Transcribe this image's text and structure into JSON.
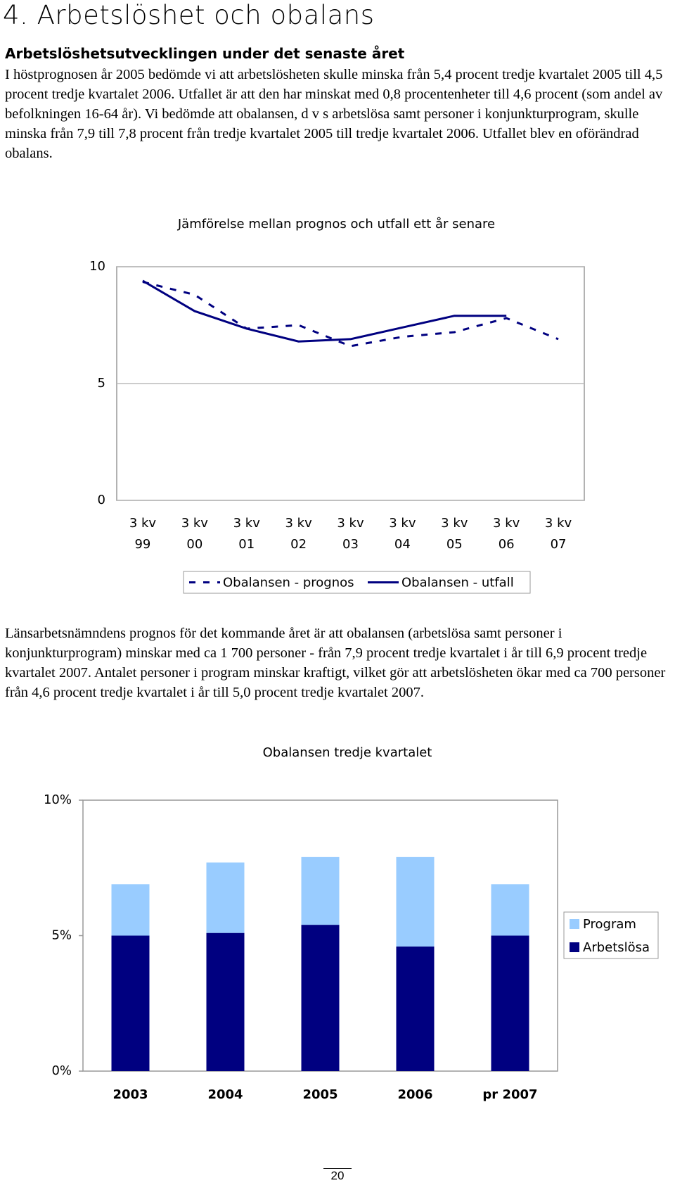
{
  "header": {
    "title": "4. Arbetslöshet och obalans"
  },
  "heading": "Arbetslöshetsutvecklingen under det senaste året",
  "paragraphs": [
    "I höstprognosen år 2005 bedömde vi att arbetslösheten skulle minska från 5,4 procent tredje kvartalet 2005 till 4,5 procent tredje kvartalet 2006. Utfallet är att den har minskat med 0,8 procentenheter till 4,6 procent (som andel av befolkningen 16-64 år). Vi bedömde att obalansen, d v s arbetslösa samt personer i konjunkturprogram, skulle minska från 7,9 till 7,8 procent från tredje kvartalet 2005 till tredje kvartalet 2006. Utfallet blev en oförändrad obalans.",
    "Länsarbetsnämndens prognos för det kommande året är att obalansen (arbetslösa samt personer i konjunkturprogram) minskar med ca 1 700 personer - från 7,9 procent tredje kvartalet i år till 6,9 procent tredje kvartalet 2007. Antalet personer i program minskar kraftigt, vilket gör att arbetslösheten ökar med ca 700 personer från 4,6 procent tredje kvartalet i år till 5,0 procent tredje kvartalet 2007."
  ],
  "chart_data": [
    {
      "type": "line",
      "title": "Jämförelse mellan prognos och utfall ett år senare",
      "categories": [
        "3 kv 99",
        "3 kv 00",
        "3 kv 01",
        "3 kv 02",
        "3 kv 03",
        "3 kv 04",
        "3 kv 05",
        "3 kv 06",
        "3 kv 07"
      ],
      "series": [
        {
          "name": "Obalansen - prognos",
          "color": "#000080",
          "style": "dashed",
          "values": [
            9.35,
            8.8,
            7.35,
            7.5,
            6.6,
            7.0,
            7.2,
            7.8,
            6.9
          ]
        },
        {
          "name": "Obalansen - utfall",
          "color": "#000080",
          "style": "solid",
          "values": [
            9.4,
            8.1,
            7.35,
            6.8,
            6.9,
            7.4,
            7.9,
            7.9,
            null
          ]
        }
      ],
      "ylim": [
        0,
        10
      ],
      "yticks": [
        0,
        5,
        10
      ],
      "grid": true,
      "legend": "bottom"
    },
    {
      "type": "stacked_bar",
      "title": "Obalansen tredje kvartalet",
      "categories": [
        "2003",
        "2004",
        "2005",
        "2006",
        "pr 2007"
      ],
      "series": [
        {
          "name": "Arbetslösa",
          "color": "#000080",
          "values": [
            5.0,
            5.1,
            5.4,
            4.6,
            5.0
          ]
        },
        {
          "name": "Program",
          "color": "#99ccff",
          "values": [
            1.9,
            2.6,
            2.5,
            3.3,
            1.9
          ]
        }
      ],
      "ylim": [
        0,
        10
      ],
      "yticks": [
        {
          "value": 0,
          "label": "0%"
        },
        {
          "value": 5,
          "label": "5%"
        },
        {
          "value": 10,
          "label": "10%"
        }
      ],
      "grid": false,
      "legend": "right"
    }
  ],
  "footer": {
    "page_number": "20"
  }
}
